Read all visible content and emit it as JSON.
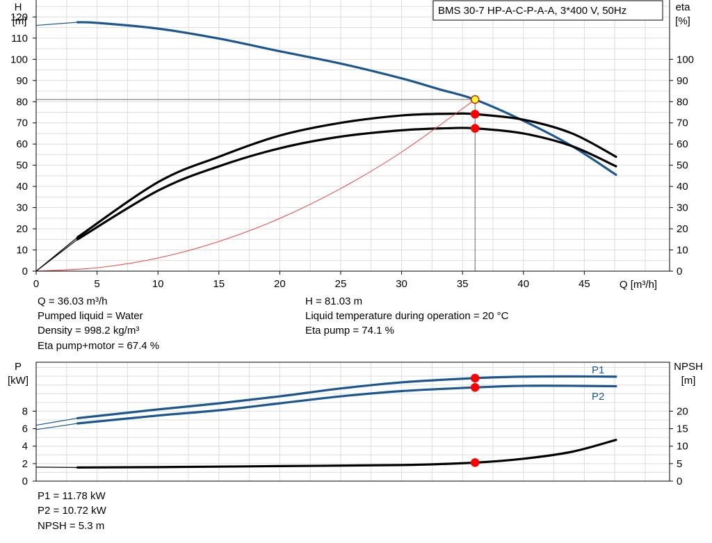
{
  "pump_label": "BMS 30-7 HP-A-C-P-A-A, 3*400 V, 50Hz",
  "axes": {
    "h_label": "H",
    "h_unit": "[m]",
    "eta_label": "eta",
    "eta_unit": "[%]",
    "q_label": "Q [m³/h]",
    "p_label": "P",
    "p_unit": "[kW]",
    "npsh_label": "NPSH",
    "npsh_unit": "[m]"
  },
  "info_top": {
    "q": "Q = 36.03 m³/h",
    "liquid": "Pumped liquid = Water",
    "density": "Density = 998.2 kg/m³",
    "eta_pm": "Eta pump+motor = 67.4 %",
    "h": "H = 81.03 m",
    "temp": "Liquid temperature during operation = 20 °C",
    "eta_pump": "Eta pump = 74.1 %"
  },
  "info_bottom": {
    "p1": "P1 = 11.78 kW",
    "p2": "P2 = 10.72 kW",
    "npsh": "NPSH = 5.3 m"
  },
  "chart_data": [
    {
      "type": "line",
      "name": "head-efficiency",
      "xlim": [
        0,
        52
      ],
      "x_ticks": [
        0,
        5,
        10,
        15,
        20,
        25,
        30,
        35,
        40,
        45
      ],
      "y_left": {
        "label": "H [m]",
        "ylim": [
          0,
          128
        ],
        "ticks": [
          0,
          10,
          20,
          30,
          40,
          50,
          60,
          70,
          80,
          90,
          100,
          110,
          120
        ]
      },
      "y_right": {
        "label": "eta [%]",
        "ylim": [
          0,
          128
        ],
        "ticks": [
          0,
          10,
          20,
          30,
          40,
          50,
          60,
          70,
          80,
          90,
          100
        ]
      },
      "grid": true,
      "series": [
        {
          "role": "head",
          "color": "#1b5690",
          "thin_from": 0,
          "thick_from": 3.4,
          "points": [
            [
              0,
              116
            ],
            [
              3.4,
              117.5
            ],
            [
              5,
              117.2
            ],
            [
              10,
              114.5
            ],
            [
              15,
              109.8
            ],
            [
              20,
              103.8
            ],
            [
              25,
              98
            ],
            [
              30,
              91
            ],
            [
              33,
              86
            ],
            [
              36.03,
              81
            ],
            [
              40,
              71
            ],
            [
              44,
              59
            ],
            [
              47.6,
              45.5
            ]
          ]
        },
        {
          "role": "eta-pump",
          "color": "#000000",
          "thin_from": 0,
          "thick_from": 3.4,
          "points": [
            [
              0,
              0
            ],
            [
              3.4,
              16
            ],
            [
              10,
              42
            ],
            [
              15,
              54
            ],
            [
              20,
              64
            ],
            [
              25,
              70
            ],
            [
              30,
              73.5
            ],
            [
              34,
              74.3
            ],
            [
              36.03,
              74.1
            ],
            [
              40,
              71.5
            ],
            [
              44,
              65
            ],
            [
              47.6,
              54
            ]
          ]
        },
        {
          "role": "eta-pump-motor",
          "color": "#000000",
          "thin_from": 0,
          "thick_from": 3.4,
          "points": [
            [
              0,
              0
            ],
            [
              3.4,
              15
            ],
            [
              10,
              38
            ],
            [
              15,
              49.5
            ],
            [
              20,
              58
            ],
            [
              25,
              63.5
            ],
            [
              30,
              66.5
            ],
            [
              34,
              67.5
            ],
            [
              36.03,
              67.4
            ],
            [
              40,
              65
            ],
            [
              44,
              59
            ],
            [
              47.6,
              49.5
            ]
          ]
        },
        {
          "role": "system-curve",
          "color": "#ee4444",
          "points": [
            [
              0,
              0
            ],
            [
              5,
              1.6
            ],
            [
              10,
              6.2
            ],
            [
              15,
              14
            ],
            [
              20,
              24.9
            ],
            [
              25,
              39
            ],
            [
              30,
              56.2
            ],
            [
              36.03,
              81
            ]
          ]
        }
      ],
      "operating_point": {
        "q": 36.03,
        "h": 81.03,
        "eta_pump": 74.1,
        "eta_pump_motor": 67.4
      }
    },
    {
      "type": "line",
      "name": "power-npsh",
      "xlim": [
        0,
        52
      ],
      "y_left": {
        "label": "P [kW]",
        "ylim": [
          0,
          13.6
        ],
        "ticks": [
          0,
          2,
          4,
          6,
          8
        ]
      },
      "y_right": {
        "label": "NPSH [m]",
        "ylim": [
          0,
          34
        ],
        "ticks": [
          0,
          5,
          10,
          15,
          20
        ]
      },
      "grid": true,
      "series": [
        {
          "name": "P1",
          "axis": "left",
          "color": "#1b5690",
          "thin_from": 0,
          "thick_from": 3.4,
          "points": [
            [
              0,
              6.4
            ],
            [
              3.4,
              7.2
            ],
            [
              10,
              8.2
            ],
            [
              15,
              8.9
            ],
            [
              20,
              9.7
            ],
            [
              25,
              10.6
            ],
            [
              30,
              11.3
            ],
            [
              36.03,
              11.78
            ],
            [
              40,
              11.95
            ],
            [
              44,
              11.98
            ],
            [
              47.6,
              11.95
            ]
          ]
        },
        {
          "name": "P2",
          "axis": "left",
          "color": "#1b5690",
          "thin_from": 0,
          "thick_from": 3.4,
          "points": [
            [
              0,
              5.9
            ],
            [
              3.4,
              6.6
            ],
            [
              10,
              7.5
            ],
            [
              15,
              8.1
            ],
            [
              20,
              8.9
            ],
            [
              25,
              9.7
            ],
            [
              30,
              10.3
            ],
            [
              36.03,
              10.72
            ],
            [
              40,
              10.9
            ],
            [
              44,
              10.9
            ],
            [
              47.6,
              10.85
            ]
          ]
        },
        {
          "role": "npsh",
          "axis": "right",
          "color": "#000000",
          "thin_from": 0,
          "thick_from": 3.4,
          "points": [
            [
              0,
              4
            ],
            [
              3.4,
              3.9
            ],
            [
              10,
              4
            ],
            [
              20,
              4.3
            ],
            [
              30,
              4.6
            ],
            [
              36.03,
              5.3
            ],
            [
              40,
              6.4
            ],
            [
              44,
              8.4
            ],
            [
              47.6,
              11.8
            ]
          ]
        }
      ],
      "operating_point": {
        "q": 36.03,
        "p1": 11.78,
        "p2": 10.72,
        "npsh": 5.3
      }
    }
  ]
}
